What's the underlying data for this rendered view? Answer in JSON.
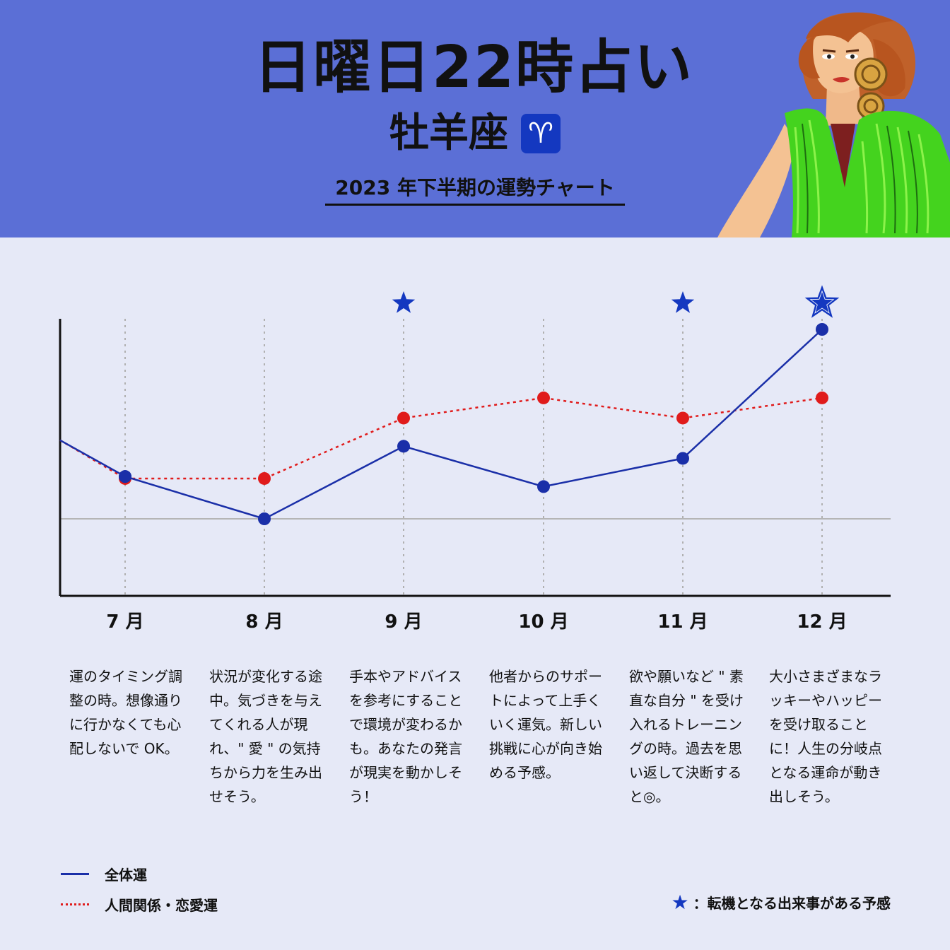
{
  "header": {
    "title": "日曜日22時占い",
    "sign_name": "牡羊座",
    "sign_symbol": "♈",
    "chart_caption": "2023 年下半期の運勢チャート"
  },
  "colors": {
    "header_bg": "#5b6fd6",
    "page_bg": "#e6e9f7",
    "overall_line": "#1a2fa8",
    "relationship_line": "#e01b1b",
    "star": "#1438c0"
  },
  "chart_data": {
    "type": "line",
    "categories": [
      "7 月",
      "8 月",
      "9 月",
      "10 月",
      "11 月",
      "12 月"
    ],
    "series": [
      {
        "name": "全体運",
        "values": [
          2.1,
          0.0,
          3.6,
          1.6,
          3.0,
          9.4
        ],
        "lead_in": 3.9
      },
      {
        "name": "人間関係・恋愛運",
        "values": [
          2.0,
          2.0,
          5.0,
          6.0,
          5.0,
          6.0
        ],
        "lead_in": 3.9
      }
    ],
    "star_categories": [
      "9 月",
      "11 月",
      "12 月"
    ],
    "big_star_category": "12 月",
    "ylim": [
      -3.5,
      10.5
    ],
    "grid": false
  },
  "notes": [
    "運のタイミング調整の時。想像通りに行かなくても心配しないで OK。",
    "状況が変化する途中。気づきを与えてくれる人が現れ、\" 愛 \" の気持ちから力を生み出せそう。",
    "手本やアドバイスを参考にすることで環境が変わるかも。あなたの発言が現実を動かしそう！",
    "他者からのサポートによって上手くいく運気。新しい挑戦に心が向き始める予感。",
    "欲や願いなど \" 素直な自分 \" を受け入れるトレーニングの時。過去を思い返して決断すると◎。",
    "大小さまざまなラッキーやハッピーを受け取ることに！人生の分岐点となる運命が動き出しそう。"
  ],
  "legend": {
    "overall": "全体運",
    "relationship": "人間関係・恋愛運",
    "star_symbol": "★",
    "star_meaning": "：転機となる出来事がある予感"
  }
}
